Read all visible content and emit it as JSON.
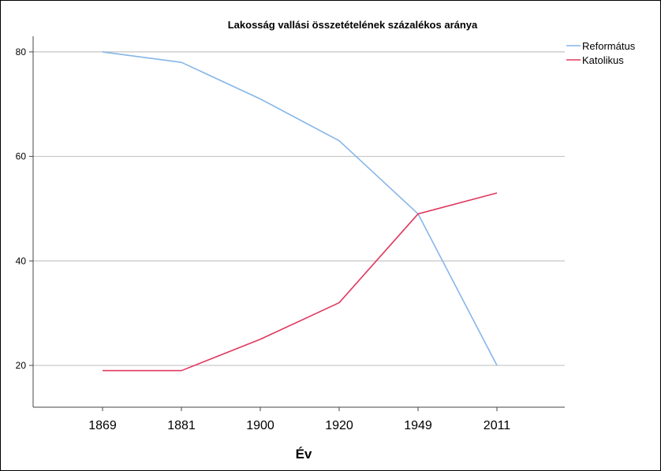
{
  "chart_data": {
    "type": "line",
    "title": "Lakosság vallási összetételének százalékos aránya",
    "xlabel": "Év",
    "ylabel": "",
    "categories": [
      "1869",
      "1881",
      "1900",
      "1920",
      "1949",
      "2011"
    ],
    "yticks": [
      "20",
      "40",
      "60",
      "80"
    ],
    "ylim": [
      12,
      83
    ],
    "grid": true,
    "legend_position": "top-right",
    "series": [
      {
        "name": "Református",
        "color": "#86b6e8",
        "values": [
          80,
          78,
          71,
          63,
          49,
          20
        ]
      },
      {
        "name": "Katolikus",
        "color": "#e0385f",
        "values": [
          19,
          19,
          25,
          32,
          49,
          53
        ]
      }
    ]
  }
}
